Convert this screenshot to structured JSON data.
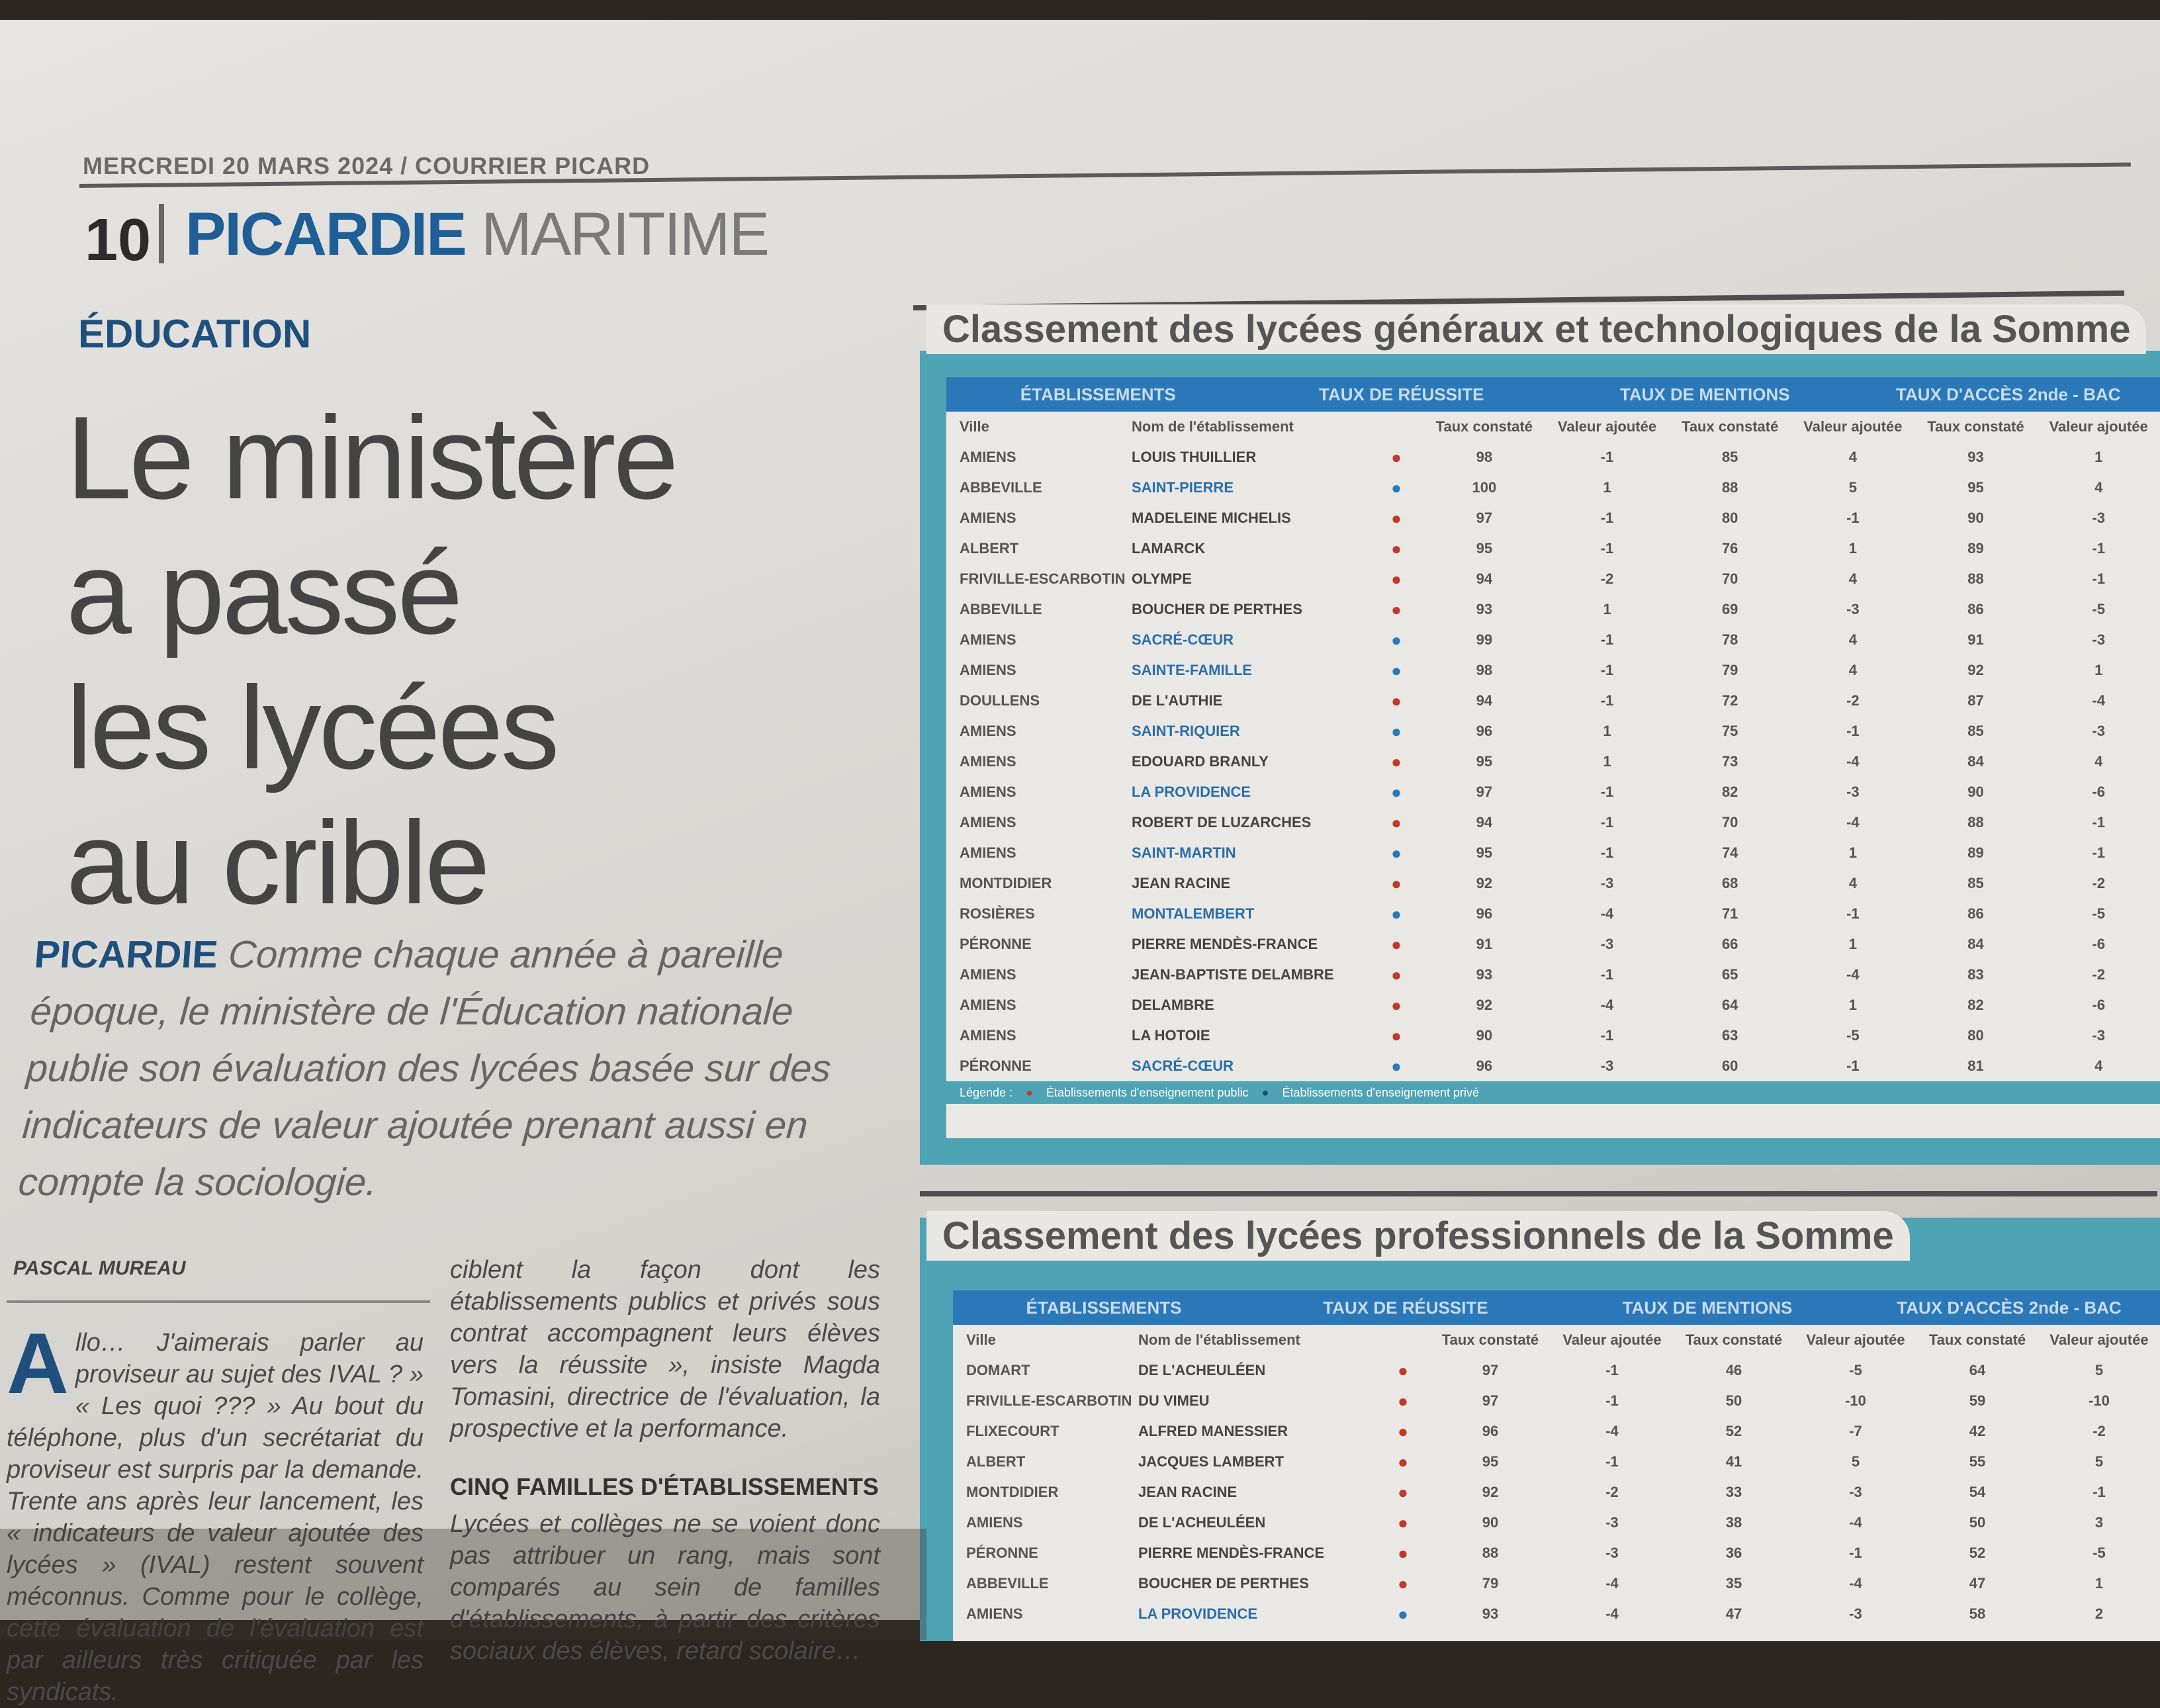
{
  "header": {
    "masthead": "MERCREDI 20 MARS 2024 / COURRIER PICARD",
    "page_number": "10",
    "section_primary": "PICARDIE",
    "section_secondary": "MARITIME"
  },
  "article": {
    "kicker": "ÉDUCATION",
    "headline_lines": [
      "Le ministère",
      "a passé",
      "les lycées",
      "au crible"
    ],
    "chapo_lead": "PICARDIE",
    "chapo": "Comme chaque année à pareille époque, le ministère de l'Éducation nationale publie son évaluation des lycées basée sur des indicateurs de valeur ajoutée prenant aussi en compte la sociologie.",
    "byline": "PASCAL MUREAU",
    "col1_dropcap": "A",
    "col1_text": "llo… J'aimerais parler au proviseur au sujet des IVAL ? » « Les quoi ??? » Au bout du téléphone, plus d'un secrétariat du proviseur est surpris par la demande. Trente ans après leur lancement, les « indicateurs de valeur ajoutée des lycées » (IVAL) restent souvent méconnus. Comme pour le collège, cette évaluation de l'évaluation est par ailleurs très critiquée par les syndicats.",
    "col2_text": "ciblent la façon dont les établissements publics et privés sous contrat accompagnent leurs élèves vers la réussite », insiste Magda Tomasini, directrice de l'évaluation, la prospective et la performance.",
    "col2_subhead": "CINQ FAMILLES D'ÉTABLISSEMENTS",
    "col2_text2": "Lycées et collèges ne se voient donc pas attribuer un rang, mais sont comparés au sein de familles d'établissements, à partir des critères sociaux des élèves, retard scolaire…"
  },
  "table_general": {
    "title": "Classement des lycées généraux et technologiques de la Somme",
    "group_headers": [
      "ÉTABLISSEMENTS",
      "TAUX DE RÉUSSITE",
      "TAUX DE MENTIONS",
      "TAUX D'ACCÈS 2nde - BAC"
    ],
    "columns": [
      "Ville",
      "Nom de l'établissement",
      "",
      "Taux constaté",
      "Valeur ajoutée",
      "Taux constaté",
      "Valeur ajoutée",
      "Taux constaté",
      "Valeur ajoutée"
    ],
    "rows": [
      {
        "city": "AMIENS",
        "name": "LOUIS THUILLIER",
        "dot": "red",
        "v": [
          "98",
          "-1",
          "85",
          "4",
          "93",
          "1"
        ]
      },
      {
        "city": "ABBEVILLE",
        "name": "SAINT-PIERRE",
        "dot": "blue",
        "v": [
          "100",
          "1",
          "88",
          "5",
          "95",
          "4"
        ]
      },
      {
        "city": "AMIENS",
        "name": "MADELEINE MICHELIS",
        "dot": "red",
        "v": [
          "97",
          "-1",
          "80",
          "-1",
          "90",
          "-3"
        ]
      },
      {
        "city": "ALBERT",
        "name": "LAMARCK",
        "dot": "red",
        "v": [
          "95",
          "-1",
          "76",
          "1",
          "89",
          "-1"
        ]
      },
      {
        "city": "FRIVILLE-ESCARBOTIN",
        "name": "OLYMPE",
        "dot": "red",
        "v": [
          "94",
          "-2",
          "70",
          "4",
          "88",
          "-1"
        ]
      },
      {
        "city": "ABBEVILLE",
        "name": "BOUCHER DE PERTHES",
        "dot": "red",
        "v": [
          "93",
          "1",
          "69",
          "-3",
          "86",
          "-5"
        ]
      },
      {
        "city": "AMIENS",
        "name": "SACRÉ-CŒUR",
        "dot": "blue",
        "v": [
          "99",
          "-1",
          "78",
          "4",
          "91",
          "-3"
        ]
      },
      {
        "city": "AMIENS",
        "name": "SAINTE-FAMILLE",
        "dot": "blue",
        "v": [
          "98",
          "-1",
          "79",
          "4",
          "92",
          "1"
        ]
      },
      {
        "city": "DOULLENS",
        "name": "DE L'AUTHIE",
        "dot": "red",
        "v": [
          "94",
          "-1",
          "72",
          "-2",
          "87",
          "-4"
        ]
      },
      {
        "city": "AMIENS",
        "name": "SAINT-RIQUIER",
        "dot": "blue",
        "v": [
          "96",
          "1",
          "75",
          "-1",
          "85",
          "-3"
        ]
      },
      {
        "city": "AMIENS",
        "name": "EDOUARD BRANLY",
        "dot": "red",
        "v": [
          "95",
          "1",
          "73",
          "-4",
          "84",
          "4"
        ]
      },
      {
        "city": "AMIENS",
        "name": "LA PROVIDENCE",
        "dot": "blue",
        "v": [
          "97",
          "-1",
          "82",
          "-3",
          "90",
          "-6"
        ]
      },
      {
        "city": "AMIENS",
        "name": "ROBERT DE LUZARCHES",
        "dot": "red",
        "v": [
          "94",
          "-1",
          "70",
          "-4",
          "88",
          "-1"
        ]
      },
      {
        "city": "AMIENS",
        "name": "SAINT-MARTIN",
        "dot": "blue",
        "v": [
          "95",
          "-1",
          "74",
          "1",
          "89",
          "-1"
        ]
      },
      {
        "city": "MONTDIDIER",
        "name": "JEAN RACINE",
        "dot": "red",
        "v": [
          "92",
          "-3",
          "68",
          "4",
          "85",
          "-2"
        ]
      },
      {
        "city": "ROSIÈRES",
        "name": "MONTALEMBERT",
        "dot": "blue",
        "v": [
          "96",
          "-4",
          "71",
          "-1",
          "86",
          "-5"
        ]
      },
      {
        "city": "PÉRONNE",
        "name": "PIERRE MENDÈS-FRANCE",
        "dot": "red",
        "v": [
          "91",
          "-3",
          "66",
          "1",
          "84",
          "-6"
        ]
      },
      {
        "city": "AMIENS",
        "name": "JEAN-BAPTISTE DELAMBRE",
        "dot": "red",
        "v": [
          "93",
          "-1",
          "65",
          "-4",
          "83",
          "-2"
        ]
      },
      {
        "city": "AMIENS",
        "name": "DELAMBRE",
        "dot": "red",
        "v": [
          "92",
          "-4",
          "64",
          "1",
          "82",
          "-6"
        ]
      },
      {
        "city": "AMIENS",
        "name": "LA HOTOIE",
        "dot": "red",
        "v": [
          "90",
          "-1",
          "63",
          "-5",
          "80",
          "-3"
        ]
      },
      {
        "city": "PÉRONNE",
        "name": "SACRÉ-CŒUR",
        "dot": "blue",
        "v": [
          "96",
          "-3",
          "60",
          "-1",
          "81",
          "4"
        ]
      }
    ],
    "legend": [
      "Légende :",
      "Établissements d'enseignement public",
      "Établissements d'enseignement privé"
    ]
  },
  "table_pro": {
    "title": "Classement des lycées professionnels de la Somme",
    "group_headers": [
      "ÉTABLISSEMENTS",
      "TAUX DE RÉUSSITE",
      "TAUX DE MENTIONS",
      "TAUX D'ACCÈS 2nde - BAC"
    ],
    "columns": [
      "Ville",
      "Nom de l'établissement",
      "",
      "Taux constaté",
      "Valeur ajoutée",
      "Taux constaté",
      "Valeur ajoutée",
      "Taux constaté",
      "Valeur ajoutée"
    ],
    "rows": [
      {
        "city": "DOMART",
        "name": "DE L'ACHEULÉEN",
        "dot": "red",
        "v": [
          "97",
          "-1",
          "46",
          "-5",
          "64",
          "5"
        ]
      },
      {
        "city": "FRIVILLE-ESCARBOTIN",
        "name": "DU VIMEU",
        "dot": "red",
        "v": [
          "97",
          "-1",
          "50",
          "-10",
          "59",
          "-10"
        ]
      },
      {
        "city": "FLIXECOURT",
        "name": "ALFRED MANESSIER",
        "dot": "red",
        "v": [
          "96",
          "-4",
          "52",
          "-7",
          "42",
          "-2"
        ]
      },
      {
        "city": "ALBERT",
        "name": "JACQUES LAMBERT",
        "dot": "red",
        "v": [
          "95",
          "-1",
          "41",
          "5",
          "55",
          "5"
        ]
      },
      {
        "city": "MONTDIDIER",
        "name": "JEAN RACINE",
        "dot": "red",
        "v": [
          "92",
          "-2",
          "33",
          "-3",
          "54",
          "-1"
        ]
      },
      {
        "city": "AMIENS",
        "name": "DE L'ACHEULÉEN",
        "dot": "red",
        "v": [
          "90",
          "-3",
          "38",
          "-4",
          "50",
          "3"
        ]
      },
      {
        "city": "PÉRONNE",
        "name": "PIERRE MENDÈS-FRANCE",
        "dot": "red",
        "v": [
          "88",
          "-3",
          "36",
          "-1",
          "52",
          "-5"
        ]
      },
      {
        "city": "ABBEVILLE",
        "name": "BOUCHER DE PERTHES",
        "dot": "red",
        "v": [
          "79",
          "-4",
          "35",
          "-4",
          "47",
          "1"
        ]
      },
      {
        "city": "AMIENS",
        "name": "LA PROVIDENCE",
        "dot": "blue",
        "v": [
          "93",
          "-4",
          "47",
          "-3",
          "58",
          "2"
        ]
      }
    ]
  },
  "colors": {
    "accent_blue": "#1f5e96",
    "table_header": "#2a78b8",
    "table_frame": "#4ea3b5",
    "public_dot": "#c0392b",
    "private_dot": "#2a78b8"
  }
}
